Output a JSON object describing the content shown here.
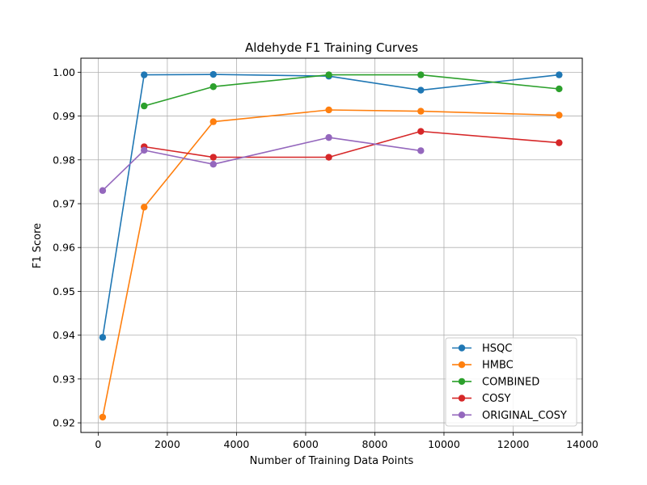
{
  "chart_data": {
    "type": "line",
    "title": "Aldehyde F1 Training Curves",
    "xlabel": "Number of Training Data Points",
    "ylabel": "F1 Score",
    "xlim": [
      -500,
      14000
    ],
    "ylim": [
      0.9178,
      1.0032
    ],
    "xticks": [
      0,
      2000,
      4000,
      6000,
      8000,
      10000,
      12000,
      14000
    ],
    "yticks": [
      0.92,
      0.93,
      0.94,
      0.95,
      0.96,
      0.97,
      0.98,
      0.99,
      1.0
    ],
    "ytick_labels": [
      "0.92",
      "0.93",
      "0.94",
      "0.95",
      "0.96",
      "0.97",
      "0.98",
      "0.99",
      "1.00"
    ],
    "grid": true,
    "legend_position": "lower-right",
    "series": [
      {
        "name": "HSQC",
        "color": "#1f77b4",
        "x": [
          130,
          1330,
          3330,
          6670,
          9330,
          13330
        ],
        "y": [
          0.9395,
          0.9994,
          0.9995,
          0.9991,
          0.9959,
          0.9994
        ]
      },
      {
        "name": "HMBC",
        "color": "#ff7f0e",
        "x": [
          130,
          1330,
          3330,
          6670,
          9330,
          13330
        ],
        "y": [
          0.9213,
          0.9692,
          0.9887,
          0.9914,
          0.9911,
          0.9902
        ]
      },
      {
        "name": "COMBINED",
        "color": "#2ca02c",
        "x": [
          1330,
          3330,
          6670,
          9330,
          13330
        ],
        "y": [
          0.9923,
          0.9967,
          0.9994,
          0.9994,
          0.9962
        ]
      },
      {
        "name": "COSY",
        "color": "#d62728",
        "x": [
          1330,
          3330,
          6670,
          9330,
          13330
        ],
        "y": [
          0.983,
          0.9806,
          0.9806,
          0.9865,
          0.9839
        ]
      },
      {
        "name": "ORIGINAL_COSY",
        "color": "#9467bd",
        "x": [
          130,
          1330,
          3330,
          6670,
          9330
        ],
        "y": [
          0.973,
          0.9822,
          0.979,
          0.9851,
          0.9821
        ]
      }
    ]
  }
}
